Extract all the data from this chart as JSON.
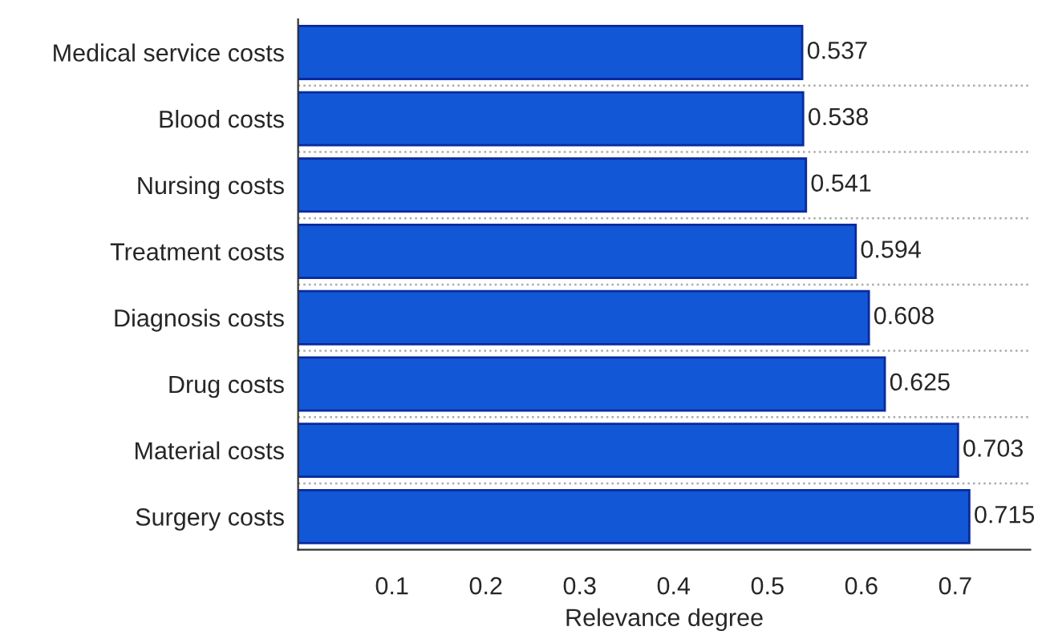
{
  "chart_data": {
    "type": "bar",
    "orientation": "horizontal",
    "xlabel": "Relevance degree",
    "categories": [
      "Medical service costs",
      "Blood costs",
      "Nursing costs",
      "Treatment costs",
      "Diagnosis costs",
      "Drug costs",
      "Material costs",
      "Surgery costs"
    ],
    "values": [
      0.537,
      0.538,
      0.541,
      0.594,
      0.608,
      0.625,
      0.703,
      0.715
    ],
    "color": "#1257d6",
    "data_labels": true,
    "xlim": [
      0,
      0.78
    ],
    "xticks": [
      0.1,
      0.2,
      0.3,
      0.4,
      0.5,
      0.6,
      0.7
    ],
    "grid": "y"
  }
}
